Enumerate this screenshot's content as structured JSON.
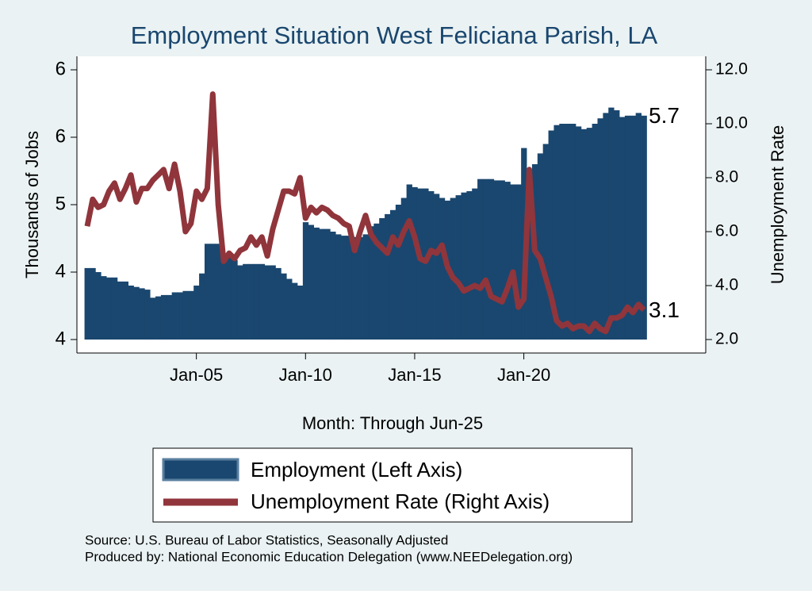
{
  "chart_data": {
    "type": "bar-line",
    "title": "Employment Situation West Feliciana Parish, LA",
    "xlabel": "Month: Through Jun-25",
    "ylabel": "Thousands of Jobs",
    "y2label": "Unemployment Rate",
    "x": [
      "Jan-00",
      "Apr-00",
      "Jul-00",
      "Oct-00",
      "Jan-01",
      "Apr-01",
      "Jul-01",
      "Oct-01",
      "Jan-02",
      "Apr-02",
      "Jul-02",
      "Oct-02",
      "Jan-03",
      "Apr-03",
      "Jul-03",
      "Oct-03",
      "Jan-04",
      "Apr-04",
      "Jul-04",
      "Oct-04",
      "Jan-05",
      "Apr-05",
      "Jul-05",
      "Oct-05",
      "Jan-06",
      "Apr-06",
      "Jul-06",
      "Oct-06",
      "Jan-07",
      "Apr-07",
      "Jul-07",
      "Oct-07",
      "Jan-08",
      "Apr-08",
      "Jul-08",
      "Oct-08",
      "Jan-09",
      "Apr-09",
      "Jul-09",
      "Oct-09",
      "Jan-10",
      "Apr-10",
      "Jul-10",
      "Oct-10",
      "Jan-11",
      "Apr-11",
      "Jul-11",
      "Oct-11",
      "Jan-12",
      "Apr-12",
      "Jul-12",
      "Oct-12",
      "Jan-13",
      "Apr-13",
      "Jul-13",
      "Oct-13",
      "Jan-14",
      "Apr-14",
      "Jul-14",
      "Oct-14",
      "Jan-15",
      "Apr-15",
      "Jul-15",
      "Oct-15",
      "Jan-16",
      "Apr-16",
      "Jul-16",
      "Oct-16",
      "Jan-17",
      "Apr-17",
      "Jul-17",
      "Oct-17",
      "Jan-18",
      "Apr-18",
      "Jul-18",
      "Oct-18",
      "Jan-19",
      "Apr-19",
      "Jul-19",
      "Oct-19",
      "Jan-20",
      "Apr-20",
      "Jul-20",
      "Oct-20",
      "Jan-21",
      "Apr-21",
      "Jul-21",
      "Oct-21",
      "Jan-22",
      "Apr-22",
      "Jul-22",
      "Oct-22",
      "Jan-23",
      "Apr-23",
      "Jul-23",
      "Oct-23",
      "Jan-24",
      "Apr-24",
      "Jul-24",
      "Oct-24",
      "Jan-25",
      "Apr-25",
      "Jun-25"
    ],
    "xticks": [
      "Jan-05",
      "Jan-10",
      "Jan-15",
      "Jan-20"
    ],
    "series": [
      {
        "name": "Employment (Left Axis)",
        "type": "bar",
        "color": "#1a476f",
        "values": [
          4.53,
          4.53,
          4.5,
          4.47,
          4.46,
          4.46,
          4.43,
          4.43,
          4.4,
          4.39,
          4.38,
          4.37,
          4.31,
          4.32,
          4.33,
          4.33,
          4.35,
          4.35,
          4.36,
          4.36,
          4.4,
          4.49,
          4.71,
          4.71,
          4.71,
          4.61,
          4.61,
          4.59,
          4.55,
          4.56,
          4.56,
          4.56,
          4.56,
          4.55,
          4.55,
          4.53,
          4.49,
          4.45,
          4.42,
          4.4,
          4.87,
          4.85,
          4.83,
          4.82,
          4.82,
          4.8,
          4.78,
          4.77,
          4.77,
          4.76,
          4.76,
          4.78,
          4.84,
          4.86,
          4.9,
          4.93,
          4.96,
          5.0,
          5.05,
          5.15,
          5.13,
          5.12,
          5.12,
          5.1,
          5.08,
          5.05,
          5.03,
          5.05,
          5.07,
          5.09,
          5.1,
          5.12,
          5.19,
          5.19,
          5.19,
          5.18,
          5.18,
          5.17,
          5.15,
          5.15,
          5.42,
          5.25,
          5.3,
          5.38,
          5.45,
          5.55,
          5.59,
          5.6,
          5.6,
          5.6,
          5.58,
          5.56,
          5.57,
          5.6,
          5.64,
          5.68,
          5.72,
          5.7,
          5.65,
          5.66,
          5.66,
          5.68,
          5.66
        ]
      },
      {
        "name": "Unemployment Rate (Right Axis)",
        "type": "line",
        "axis": "y2",
        "color": "#90353b",
        "values": [
          6.2,
          7.2,
          6.9,
          7.0,
          7.5,
          7.8,
          7.2,
          7.6,
          8.1,
          7.1,
          7.6,
          7.6,
          7.9,
          8.1,
          8.3,
          7.6,
          8.5,
          7.5,
          6.0,
          6.3,
          7.5,
          7.2,
          7.6,
          11.1,
          7.0,
          4.9,
          5.2,
          5.0,
          5.3,
          5.4,
          5.8,
          5.5,
          5.8,
          5.1,
          6.1,
          6.8,
          7.5,
          7.5,
          7.4,
          8.0,
          6.5,
          6.9,
          6.7,
          6.9,
          6.8,
          6.6,
          6.5,
          6.3,
          6.2,
          5.3,
          6.0,
          6.6,
          5.9,
          5.6,
          5.4,
          5.2,
          5.8,
          5.5,
          6.0,
          6.4,
          5.8,
          5.0,
          4.9,
          5.3,
          5.2,
          5.5,
          4.7,
          4.3,
          4.1,
          3.8,
          3.9,
          4.0,
          3.9,
          4.2,
          3.6,
          3.5,
          3.4,
          3.9,
          4.5,
          3.2,
          3.5,
          8.3,
          5.3,
          5.0,
          4.3,
          3.6,
          2.7,
          2.5,
          2.6,
          2.4,
          2.5,
          2.5,
          2.3,
          2.6,
          2.4,
          2.3,
          2.8,
          2.8,
          2.9,
          3.2,
          3.0,
          3.3,
          3.1
        ]
      }
    ],
    "annotations": [
      "5.7",
      "3.1"
    ],
    "ylim": [
      3.9,
      6.1
    ],
    "yticks": [
      4,
      {
        "value": 4.5,
        "label": "4"
      },
      5,
      {
        "value": 5.5,
        "label": "6"
      },
      6
    ],
    "y2lim": [
      1.5,
      12.5
    ],
    "y2ticks": [
      {
        "value": 2,
        "label": "2.0"
      },
      {
        "value": 4,
        "label": "4.0"
      },
      {
        "value": 6,
        "label": "6.0"
      },
      {
        "value": 8,
        "label": "8.0"
      },
      {
        "value": 10,
        "label": "10.0"
      },
      {
        "value": 12,
        "label": "12.0"
      }
    ],
    "notes": [
      "Source: U.S. Bureau of Labor Statistics, Seasonally Adjusted",
      "Produced by: National Economic Education Delegation (www.NEEDelegation.org)"
    ]
  }
}
